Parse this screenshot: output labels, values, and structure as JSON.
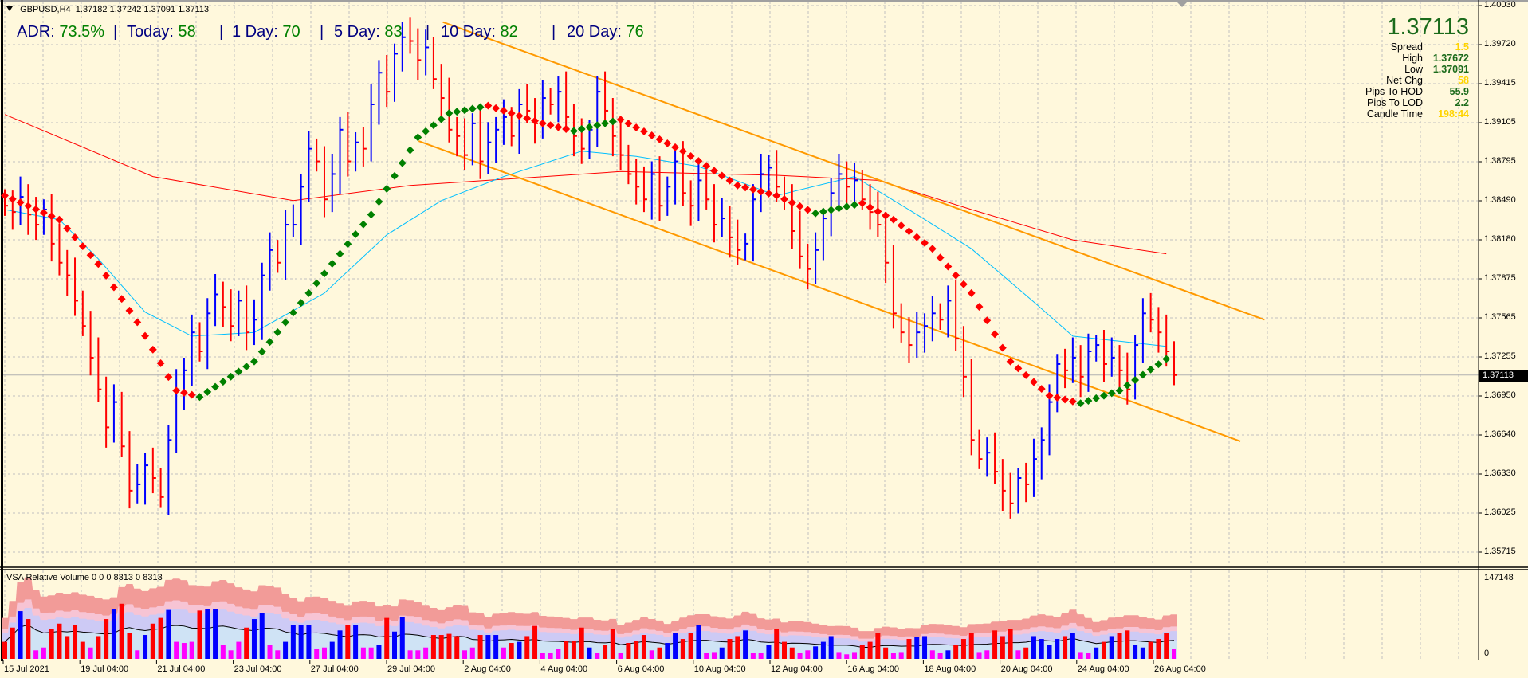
{
  "header": {
    "symbol": "GBPUSD,H4",
    "ohlc": "1.37182 1.37242 1.37091 1.37113"
  },
  "adr": {
    "items": [
      {
        "label": "ADR:",
        "value": "73.5%"
      },
      {
        "label": "Today:",
        "value": "58"
      },
      {
        "label": "1 Day:",
        "value": "70"
      },
      {
        "label": "5 Day:",
        "value": "83"
      },
      {
        "label": "10 Day:",
        "value": "82"
      },
      {
        "label": "20 Day:",
        "value": "76"
      }
    ],
    "separator": "|"
  },
  "info_panel": {
    "price": "1.37113",
    "rows": [
      {
        "label": "Spread",
        "value": "1.5",
        "color": "gold"
      },
      {
        "label": "High",
        "value": "1.37672",
        "color": "green"
      },
      {
        "label": "Low",
        "value": "1.37091",
        "color": "green"
      },
      {
        "label": "Net Chg",
        "value": "58",
        "color": "gold"
      },
      {
        "label": "Pips To HOD",
        "value": "55.9",
        "color": "green"
      },
      {
        "label": "Pips To LOD",
        "value": "2.2",
        "color": "green"
      },
      {
        "label": "Candle Time",
        "value": "198:44",
        "color": "gold"
      }
    ]
  },
  "volume_panel": {
    "title": "VSA Relative Volume 0 0 0 8313 0 8313",
    "max_label": "147148",
    "min_label": "0"
  },
  "colors": {
    "background": "#fff8dc",
    "up_bar": "#0000ff",
    "down_bar": "#ff0000",
    "low_volume": "#ff00ff",
    "ma_slow": "#ff0000",
    "ma_fast": "#00bfff",
    "trend_up": "#008000",
    "trend_down": "#ff0000",
    "channel": "#ff9900"
  },
  "chart_data": {
    "type": "ohlc",
    "symbol": "GBPUSD",
    "timeframe": "H4",
    "current_price": 1.37113,
    "current_price_label": "1.37113",
    "ylim": [
      1.35715,
      1.4003
    ],
    "y_ticks": [
      "1.40030",
      "1.39720",
      "1.39415",
      "1.39105",
      "1.38795",
      "1.38490",
      "1.38180",
      "1.37875",
      "1.37565",
      "1.37255",
      "1.36950",
      "1.36640",
      "1.36330",
      "1.36025",
      "1.35715"
    ],
    "x_ticks": [
      "15 Jul 2021",
      "19 Jul 04:00",
      "21 Jul 04:00",
      "23 Jul 04:00",
      "27 Jul 04:00",
      "29 Jul 04:00",
      "2 Aug 04:00",
      "4 Aug 04:00",
      "6 Aug 04:00",
      "10 Aug 04:00",
      "12 Aug 04:00",
      "16 Aug 04:00",
      "18 Aug 04:00",
      "20 Aug 04:00",
      "24 Aug 04:00",
      "26 Aug 04:00"
    ],
    "grid": true,
    "close": [
      1.3845,
      1.384,
      1.3852,
      1.3838,
      1.383,
      1.3842,
      1.3815,
      1.38,
      1.379,
      1.377,
      1.375,
      1.3725,
      1.37,
      1.367,
      1.369,
      1.3655,
      1.362,
      1.3625,
      1.364,
      1.363,
      1.3615,
      1.366,
      1.37,
      1.3715,
      1.3745,
      1.373,
      1.376,
      1.3775,
      1.3765,
      1.375,
      1.377,
      1.3745,
      1.3755,
      1.379,
      1.381,
      1.38,
      1.383,
      1.383,
      1.386,
      1.389,
      1.388,
      1.385,
      1.387,
      1.3905,
      1.388,
      1.3895,
      1.389,
      1.3925,
      1.395,
      1.3935,
      1.3965,
      1.3978,
      1.3975,
      1.396,
      1.397,
      1.3945,
      1.393,
      1.3905,
      1.39,
      1.3885,
      1.391,
      1.388,
      1.3895,
      1.3905,
      1.3915,
      1.39,
      1.3925,
      1.392,
      1.391,
      1.393,
      1.3925,
      1.3935,
      1.3915,
      1.39,
      1.389,
      1.3905,
      1.3935,
      1.392,
      1.39,
      1.3885,
      1.387,
      1.386,
      1.385,
      1.387,
      1.3845,
      1.386,
      1.388,
      1.3855,
      1.3845,
      1.3865,
      1.385,
      1.383,
      1.3835,
      1.382,
      1.381,
      1.3815,
      1.385,
      1.387,
      1.3875,
      1.386,
      1.385,
      1.3825,
      1.3805,
      1.3795,
      1.381,
      1.3835,
      1.3855,
      1.387,
      1.386,
      1.3865,
      1.385,
      1.384,
      1.383,
      1.38,
      1.376,
      1.3745,
      1.3735,
      1.3745,
      1.375,
      1.376,
      1.3755,
      1.377,
      1.374,
      1.371,
      1.366,
      1.3645,
      1.365,
      1.3635,
      1.362,
      1.361,
      1.363,
      1.3625,
      1.3645,
      1.366,
      1.369,
      1.372,
      1.3715,
      1.3725,
      1.371,
      1.373,
      1.3735,
      1.372,
      1.3725,
      1.3715,
      1.37,
      1.3735,
      1.376,
      1.3755,
      1.3745,
      1.373,
      1.37113
    ],
    "ma_slow": [
      [
        0,
        1.3917
      ],
      [
        19,
        1.3868
      ],
      [
        37,
        1.3849
      ],
      [
        52,
        1.3861
      ],
      [
        79,
        1.3872
      ],
      [
        99,
        1.3869
      ],
      [
        112,
        1.3865
      ],
      [
        124,
        1.3842
      ],
      [
        137,
        1.3818
      ],
      [
        149,
        1.3807
      ]
    ],
    "ma_fast": [
      [
        0,
        1.3842
      ],
      [
        7,
        1.3834
      ],
      [
        12,
        1.3803
      ],
      [
        18,
        1.3761
      ],
      [
        24,
        1.3742
      ],
      [
        32,
        1.3745
      ],
      [
        41,
        1.3776
      ],
      [
        49,
        1.3822
      ],
      [
        56,
        1.3849
      ],
      [
        64,
        1.3868
      ],
      [
        74,
        1.3888
      ],
      [
        81,
        1.3884
      ],
      [
        89,
        1.3876
      ],
      [
        99,
        1.3853
      ],
      [
        109,
        1.3868
      ],
      [
        117,
        1.3838
      ],
      [
        124,
        1.3811
      ],
      [
        132,
        1.3769
      ],
      [
        137,
        1.3742
      ],
      [
        143,
        1.3738
      ],
      [
        149,
        1.3734
      ]
    ],
    "trend_line": [
      [
        0,
        1.3853
      ],
      [
        7,
        1.3834
      ],
      [
        12,
        1.3799
      ],
      [
        17,
        1.3753
      ],
      [
        22,
        1.3699
      ],
      [
        25,
        1.3694
      ],
      [
        32,
        1.3722
      ],
      [
        39,
        1.3776
      ],
      [
        47,
        1.3838
      ],
      [
        53,
        1.3899
      ],
      [
        57,
        1.3918
      ],
      [
        62,
        1.3924
      ],
      [
        69,
        1.391
      ],
      [
        73,
        1.3904
      ],
      [
        79,
        1.3913
      ],
      [
        87,
        1.3888
      ],
      [
        94,
        1.3861
      ],
      [
        99,
        1.3853
      ],
      [
        104,
        1.3839
      ],
      [
        110,
        1.3847
      ],
      [
        114,
        1.3834
      ],
      [
        119,
        1.3811
      ],
      [
        124,
        1.3776
      ],
      [
        129,
        1.3722
      ],
      [
        134,
        1.3695
      ],
      [
        138,
        1.3689
      ],
      [
        143,
        1.3699
      ],
      [
        149,
        1.3724
      ]
    ],
    "channel_upper": [
      [
        56.2,
        1.399
      ],
      [
        161.6,
        1.3755
      ]
    ],
    "channel_lower": [
      [
        53.1,
        1.3896
      ],
      [
        158.5,
        1.3659
      ]
    ],
    "volume": [
      30000,
      55000,
      84000,
      70000,
      15000,
      20000,
      52000,
      62000,
      40000,
      60000,
      30000,
      20000,
      40000,
      70000,
      88000,
      97000,
      45000,
      15000,
      42000,
      62000,
      72000,
      86000,
      30000,
      28000,
      30000,
      85000,
      88000,
      88000,
      25000,
      15000,
      30000,
      55000,
      70000,
      80000,
      25000,
      15000,
      30000,
      60000,
      60000,
      60000,
      18000,
      20000,
      30000,
      50000,
      60000,
      60000,
      20000,
      20000,
      25000,
      72000,
      48000,
      74000,
      15000,
      15000,
      20000,
      42000,
      42000,
      44000,
      40000,
      15000,
      20000,
      42000,
      42000,
      42000,
      20000,
      28000,
      30000,
      40000,
      58000,
      10000,
      10000,
      18000,
      32000,
      32000,
      55000,
      20000,
      10000,
      25000,
      52000,
      10000,
      28000,
      32000,
      42000,
      15000,
      20000,
      28000,
      45000,
      35000,
      45000,
      60000,
      10000,
      12000,
      20000,
      35000,
      40000,
      50000,
      10000,
      10000,
      25000,
      52000,
      30000,
      20000,
      10000,
      15000,
      22000,
      30000,
      40000,
      12000,
      8000,
      12000,
      25000,
      30000,
      45000,
      20000,
      10000,
      12000,
      35000,
      38000,
      40000,
      15000,
      10000,
      15000,
      25000,
      35000,
      45000,
      12000,
      15000,
      50000,
      40000,
      52000,
      15000,
      20000,
      40000,
      35000,
      25000,
      35000,
      40000,
      45000,
      12000,
      10000,
      20000,
      30000,
      40000,
      45000,
      50000,
      25000,
      20000,
      30000,
      35000,
      45000,
      18000
    ],
    "volume_ylim": [
      0,
      147148
    ]
  }
}
